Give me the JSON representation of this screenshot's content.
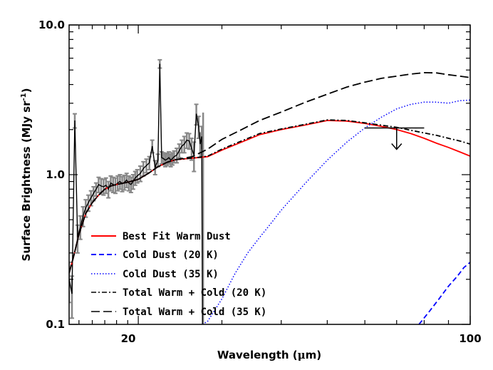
{
  "chart_data": {
    "type": "line",
    "xlabel_main": "Wavelength (",
    "xlabel_mu": "μ",
    "xlabel_tail": "m)",
    "ylabel_main": "Surface Brightness (MJy sr",
    "ylabel_sup": "-1",
    "ylabel_tail": ")",
    "x_scale": "log",
    "y_scale": "log",
    "xlim": [
      14.3,
      100
    ],
    "ylim": [
      0.1,
      10
    ],
    "xticks": [
      {
        "value": 20,
        "label": "20"
      },
      {
        "value": 100,
        "label": "100"
      }
    ],
    "yticks": [
      {
        "value": 0.1,
        "label": "0.1"
      },
      {
        "value": 1.0,
        "label": "1.0"
      },
      {
        "value": 10.0,
        "label": "10.0"
      }
    ],
    "legend_position": "bottom-left",
    "series": [
      {
        "name": "Best Fit Warm Dust",
        "color": "#ff0000",
        "dash": "solid",
        "x": [
          14.3,
          14.6,
          15.0,
          15.5,
          16.0,
          16.5,
          17.0,
          17.5,
          18.0,
          19.0,
          20.0,
          21.0,
          22.0,
          23.0,
          24.0,
          26.0,
          28.0,
          30.0,
          33.0,
          36.0,
          40.0,
          45.0,
          50.0,
          55.0,
          60.0,
          65.0,
          70.0,
          75.0,
          80.0,
          85.0,
          90.0,
          95.0,
          100.0
        ],
        "y": [
          0.22,
          0.28,
          0.4,
          0.55,
          0.65,
          0.73,
          0.8,
          0.84,
          0.86,
          0.89,
          0.93,
          1.02,
          1.13,
          1.21,
          1.26,
          1.29,
          1.32,
          1.46,
          1.65,
          1.85,
          2.0,
          2.15,
          2.3,
          2.28,
          2.2,
          2.1,
          2.0,
          1.88,
          1.75,
          1.62,
          1.52,
          1.42,
          1.33
        ]
      },
      {
        "name": "Cold Dust (20 K)",
        "color": "#0000ff",
        "dash": "dashed",
        "x": [
          78.0,
          82.0,
          86.0,
          90.0,
          94.0,
          97.0,
          100.0
        ],
        "y": [
          0.1,
          0.122,
          0.148,
          0.18,
          0.21,
          0.24,
          0.26
        ]
      },
      {
        "name": "Cold Dust (35 K)",
        "color": "#0000ff",
        "dash": "dotted",
        "x": [
          27.3,
          28.0,
          29.0,
          30.0,
          32.0,
          34.0,
          36.0,
          38.0,
          40.0,
          45.0,
          50.0,
          55.0,
          60.0,
          65.0,
          70.0,
          75.0,
          80.0,
          85.0,
          90.0,
          95.0,
          100.0
        ],
        "y": [
          0.1,
          0.105,
          0.125,
          0.148,
          0.22,
          0.3,
          0.38,
          0.47,
          0.58,
          0.88,
          1.25,
          1.65,
          2.05,
          2.42,
          2.75,
          2.95,
          3.05,
          3.05,
          3.0,
          3.12,
          3.15
        ]
      },
      {
        "name": "Total Warm + Cold (20 K)",
        "color": "#000000",
        "dash": "dashdot",
        "x": [
          14.3,
          14.6,
          15.0,
          15.5,
          16.0,
          16.5,
          17.0,
          17.5,
          18.0,
          19.0,
          20.0,
          21.0,
          22.0,
          23.0,
          24.0,
          26.0,
          28.0,
          30.0,
          33.0,
          36.0,
          40.0,
          45.0,
          50.0,
          55.0,
          60.0,
          65.0,
          70.0,
          75.0,
          80.0,
          85.0,
          90.0,
          95.0,
          100.0
        ],
        "y": [
          0.22,
          0.28,
          0.4,
          0.55,
          0.65,
          0.73,
          0.8,
          0.84,
          0.86,
          0.89,
          0.93,
          1.02,
          1.13,
          1.21,
          1.26,
          1.29,
          1.33,
          1.48,
          1.68,
          1.88,
          2.02,
          2.17,
          2.32,
          2.3,
          2.22,
          2.14,
          2.07,
          1.98,
          1.9,
          1.83,
          1.75,
          1.68,
          1.6
        ]
      },
      {
        "name": "Total Warm + Cold (35 K)",
        "color": "#000000",
        "dash": "longdash",
        "x": [
          14.3,
          14.6,
          15.0,
          15.5,
          16.0,
          16.5,
          17.0,
          17.5,
          18.0,
          19.0,
          20.0,
          21.0,
          22.0,
          23.0,
          24.0,
          26.0,
          28.0,
          30.0,
          33.0,
          36.0,
          40.0,
          45.0,
          50.0,
          55.0,
          60.0,
          65.0,
          70.0,
          75.0,
          80.0,
          85.0,
          90.0,
          95.0,
          100.0
        ],
        "y": [
          0.22,
          0.28,
          0.4,
          0.55,
          0.65,
          0.73,
          0.8,
          0.84,
          0.86,
          0.89,
          0.93,
          1.02,
          1.13,
          1.21,
          1.26,
          1.32,
          1.48,
          1.72,
          2.0,
          2.3,
          2.62,
          3.05,
          3.45,
          3.85,
          4.15,
          4.4,
          4.55,
          4.7,
          4.8,
          4.78,
          4.65,
          4.55,
          4.45
        ]
      }
    ],
    "spectrum": {
      "color": "#000000",
      "errorbar_color": "#888888",
      "x": [
        14.3,
        14.5,
        14.7,
        14.9,
        15.1,
        15.3,
        15.5,
        15.7,
        15.9,
        16.1,
        16.3,
        16.5,
        16.7,
        16.9,
        17.1,
        17.3,
        17.5,
        17.7,
        17.9,
        18.1,
        18.3,
        18.5,
        18.7,
        18.9,
        19.1,
        19.3,
        19.5,
        19.7,
        19.9,
        20.2,
        20.5,
        20.8,
        21.1,
        21.4,
        21.7,
        22.0,
        22.2,
        22.4,
        22.6,
        22.8,
        23.0,
        23.2,
        23.4,
        23.6,
        23.8,
        24.1,
        24.4,
        24.7,
        25.0,
        25.3,
        25.6,
        25.9,
        26.2,
        26.5,
        26.8,
        27.0,
        27.2,
        27.3
      ],
      "y": [
        0.2,
        0.16,
        2.3,
        0.38,
        0.45,
        0.53,
        0.6,
        0.65,
        0.7,
        0.75,
        0.8,
        0.86,
        0.84,
        0.83,
        0.85,
        0.8,
        0.88,
        0.86,
        0.85,
        0.88,
        0.9,
        0.87,
        0.89,
        0.92,
        0.88,
        0.86,
        0.9,
        0.95,
        0.98,
        1.02,
        1.1,
        1.15,
        1.2,
        1.55,
        1.12,
        1.25,
        5.5,
        1.3,
        1.28,
        1.25,
        1.27,
        1.3,
        1.25,
        1.28,
        1.32,
        1.35,
        1.45,
        1.55,
        1.6,
        1.7,
        1.68,
        1.5,
        1.35,
        2.55,
        2.1,
        1.6,
        1.8,
        0.1
      ],
      "yerr": [
        0.06,
        0.05,
        0.25,
        0.08,
        0.08,
        0.08,
        0.08,
        0.08,
        0.08,
        0.08,
        0.08,
        0.1,
        0.1,
        0.1,
        0.1,
        0.1,
        0.1,
        0.1,
        0.1,
        0.1,
        0.1,
        0.1,
        0.1,
        0.1,
        0.1,
        0.1,
        0.1,
        0.1,
        0.1,
        0.12,
        0.12,
        0.12,
        0.12,
        0.15,
        0.12,
        0.12,
        0.35,
        0.12,
        0.12,
        0.12,
        0.12,
        0.12,
        0.12,
        0.12,
        0.12,
        0.15,
        0.15,
        0.15,
        0.2,
        0.2,
        0.2,
        0.25,
        0.3,
        0.4,
        0.35,
        0.3,
        0.3,
        0.0
      ]
    },
    "upper_limit": {
      "x": 70,
      "y": 2.05,
      "xerr": [
        60,
        80
      ]
    },
    "legend": [
      {
        "label": "Best Fit Warm Dust",
        "color": "#ff0000",
        "dash": "solid"
      },
      {
        "label": "Cold Dust (20 K)",
        "color": "#0000ff",
        "dash": "dashed"
      },
      {
        "label": "Cold Dust (35 K)",
        "color": "#0000ff",
        "dash": "dotted"
      },
      {
        "label": "Total Warm + Cold (20 K)",
        "color": "#000000",
        "dash": "dashdot"
      },
      {
        "label": "Total Warm + Cold (35 K)",
        "color": "#000000",
        "dash": "longdash"
      }
    ]
  }
}
